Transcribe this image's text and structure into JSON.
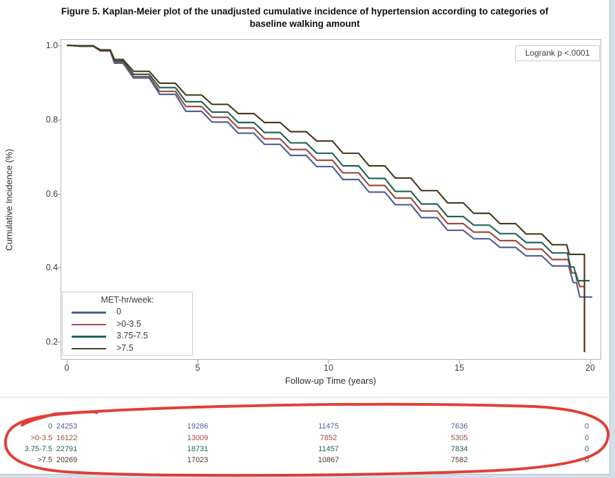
{
  "title": {
    "line1": "Figure 5. Kaplan-Meier plot of the unadjusted cumulative incidence of hypertension according to categories of",
    "line2": "baseline walking amount"
  },
  "annotation_box": {
    "label": "Logrank p <.0001"
  },
  "colors": {
    "series_0": "#4E5F98",
    "series_0_3_5": "#9E4A3F",
    "series_3_75_7_5": "#1F6358",
    "series_7_5": "#4A3C1D",
    "hand_circle": "#DE2F26",
    "frame": "#B4B4B4",
    "page_margin": "#D5DFE9"
  },
  "chart_data": {
    "type": "line",
    "subtype": "kaplan-meier-step",
    "title": "Figure 5. Kaplan-Meier plot of the unadjusted cumulative incidence of hypertension according to categories of baseline walking amount",
    "xlabel": "Follow-up Time (years)",
    "ylabel": "Cumulative Incidence (%)",
    "x_ticks": [
      0,
      5,
      10,
      15,
      20
    ],
    "y_ticks": [
      "1.0",
      "0.8",
      "0.6",
      "0.4",
      "0.2"
    ],
    "y_tick_values": [
      1.0,
      0.8,
      0.6,
      0.4,
      0.2
    ],
    "xlim": [
      -0.25,
      20.4
    ],
    "ylim": [
      0.15,
      1.02
    ],
    "grid": false,
    "legend_position": "inside bottom-left",
    "legend_title": "MET-hr/week:",
    "annotation": "Logrank p <.0001",
    "series": [
      {
        "name": "0",
        "color": "#4E5F98",
        "points": [
          [
            0,
            1.0
          ],
          [
            0.9,
            0.998
          ],
          [
            1.6,
            0.985
          ],
          [
            2,
            0.952
          ],
          [
            3,
            0.912
          ],
          [
            4,
            0.868
          ],
          [
            5,
            0.822
          ],
          [
            6,
            0.793
          ],
          [
            7,
            0.763
          ],
          [
            8,
            0.733
          ],
          [
            9,
            0.703
          ],
          [
            10,
            0.673
          ],
          [
            11,
            0.638
          ],
          [
            12,
            0.604
          ],
          [
            13,
            0.57
          ],
          [
            14,
            0.535
          ],
          [
            15,
            0.501
          ],
          [
            16,
            0.478
          ],
          [
            17,
            0.455
          ],
          [
            18,
            0.432
          ],
          [
            19,
            0.405
          ]
        ],
        "tail": [
          [
            19.35,
            0.36
          ],
          [
            19.6,
            0.321
          ],
          [
            20.08,
            0.321
          ]
        ]
      },
      {
        "name": ">0-3.5",
        "color": "#9E4A3F",
        "points": [
          [
            0,
            1.0
          ],
          [
            0.9,
            0.998
          ],
          [
            1.6,
            0.986
          ],
          [
            2,
            0.955
          ],
          [
            3,
            0.916
          ],
          [
            4,
            0.876
          ],
          [
            5,
            0.835
          ],
          [
            6,
            0.806
          ],
          [
            7,
            0.777
          ],
          [
            8,
            0.748
          ],
          [
            9,
            0.719
          ],
          [
            10,
            0.69
          ],
          [
            11,
            0.656
          ],
          [
            12,
            0.622
          ],
          [
            13,
            0.588
          ],
          [
            14,
            0.553
          ],
          [
            15,
            0.519
          ],
          [
            16,
            0.496
          ],
          [
            17,
            0.473
          ],
          [
            18,
            0.45
          ],
          [
            19,
            0.422
          ]
        ],
        "tail": [
          [
            19.3,
            0.386
          ],
          [
            19.6,
            0.349
          ],
          [
            19.78,
            0.349
          ],
          [
            19.78,
            0.175
          ]
        ]
      },
      {
        "name": "3.75-7.5",
        "color": "#1F6358",
        "points": [
          [
            0,
            1.0
          ],
          [
            0.9,
            0.998
          ],
          [
            1.6,
            0.987
          ],
          [
            2,
            0.958
          ],
          [
            3,
            0.922
          ],
          [
            4,
            0.886
          ],
          [
            5,
            0.848
          ],
          [
            6,
            0.82
          ],
          [
            7,
            0.792
          ],
          [
            8,
            0.765
          ],
          [
            9,
            0.737
          ],
          [
            10,
            0.709
          ],
          [
            11,
            0.675
          ],
          [
            12,
            0.641
          ],
          [
            13,
            0.606
          ],
          [
            14,
            0.572
          ],
          [
            15,
            0.538
          ],
          [
            16,
            0.515
          ],
          [
            17,
            0.492
          ],
          [
            18,
            0.468
          ],
          [
            19,
            0.44
          ]
        ],
        "tail": [
          [
            19.25,
            0.402
          ],
          [
            19.5,
            0.365
          ],
          [
            19.98,
            0.365
          ]
        ]
      },
      {
        "name": ">7.5",
        "color": "#4A3C1D",
        "points": [
          [
            0,
            1.0
          ],
          [
            0.9,
            0.999
          ],
          [
            1.6,
            0.988
          ],
          [
            2,
            0.962
          ],
          [
            3,
            0.93
          ],
          [
            4,
            0.898
          ],
          [
            5,
            0.866
          ],
          [
            6,
            0.841
          ],
          [
            7,
            0.816
          ],
          [
            8,
            0.792
          ],
          [
            9,
            0.767
          ],
          [
            10,
            0.742
          ],
          [
            11,
            0.709
          ],
          [
            12,
            0.675
          ],
          [
            13,
            0.642
          ],
          [
            14,
            0.608
          ],
          [
            15,
            0.575
          ],
          [
            16,
            0.547
          ],
          [
            17,
            0.519
          ],
          [
            18,
            0.491
          ],
          [
            19,
            0.462
          ]
        ],
        "tail": [
          [
            19.2,
            0.436
          ],
          [
            19.78,
            0.436
          ],
          [
            19.78,
            0.172
          ]
        ]
      }
    ],
    "at_risk_table": {
      "times": [
        0,
        5,
        10,
        15,
        20
      ],
      "rows": [
        {
          "label": "0",
          "color": "#4E5F98",
          "values": [
            "24253",
            "19286",
            "11475",
            "7636",
            "0"
          ]
        },
        {
          "label": ">0-3.5",
          "color": "#9E4A3F",
          "values": [
            "16122",
            "13009",
            "7852",
            "5305",
            "0"
          ]
        },
        {
          "label": "3.75-7.5",
          "color": "#1F6358",
          "values": [
            "22791",
            "18731",
            "11457",
            "7834",
            "0"
          ]
        },
        {
          "label": ">7.5",
          "color": "#4A3C1D",
          "values": [
            "20269",
            "17023",
            "10867",
            "7582",
            "0"
          ]
        }
      ]
    }
  }
}
